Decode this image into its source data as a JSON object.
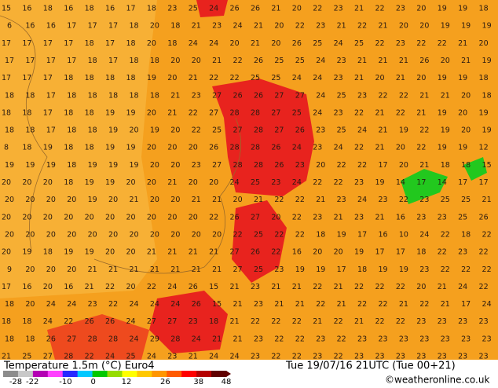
{
  "map": {
    "rows": [
      [
        15,
        16,
        18,
        16,
        18,
        16,
        17,
        18,
        23,
        25,
        24,
        26,
        26,
        21,
        20,
        22,
        23,
        21,
        22,
        23,
        20,
        19,
        19,
        18
      ],
      [
        6,
        16,
        16,
        17,
        17,
        17,
        18,
        20,
        18,
        21,
        23,
        24,
        21,
        20,
        22,
        23,
        21,
        22,
        21,
        20,
        20,
        19,
        19,
        19
      ],
      [
        17,
        17,
        17,
        17,
        18,
        17,
        18,
        20,
        18,
        24,
        24,
        20,
        21,
        20,
        26,
        25,
        24,
        25,
        22,
        23,
        22,
        22,
        21,
        20
      ],
      [
        17,
        17,
        17,
        17,
        18,
        17,
        18,
        18,
        20,
        20,
        21,
        22,
        26,
        25,
        25,
        24,
        23,
        21,
        21,
        21,
        26,
        20,
        21,
        19
      ],
      [
        17,
        17,
        17,
        18,
        18,
        18,
        18,
        19,
        20,
        21,
        22,
        22,
        25,
        25,
        24,
        24,
        23,
        21,
        20,
        21,
        20,
        19,
        19,
        18
      ],
      [
        18,
        18,
        17,
        18,
        18,
        18,
        18,
        18,
        21,
        23,
        27,
        26,
        26,
        27,
        27,
        24,
        25,
        23,
        22,
        22,
        21,
        21,
        20,
        18
      ],
      [
        18,
        18,
        17,
        18,
        18,
        19,
        19,
        20,
        21,
        22,
        27,
        28,
        28,
        27,
        25,
        24,
        23,
        22,
        21,
        22,
        21,
        19,
        20,
        19
      ],
      [
        18,
        18,
        17,
        18,
        18,
        19,
        20,
        19,
        20,
        22,
        25,
        27,
        28,
        27,
        26,
        23,
        25,
        24,
        21,
        19,
        22,
        19,
        20,
        19
      ],
      [
        8,
        18,
        19,
        18,
        18,
        19,
        19,
        20,
        20,
        20,
        26,
        28,
        28,
        26,
        24,
        23,
        24,
        22,
        21,
        20,
        22,
        19,
        19,
        12
      ],
      [
        19,
        19,
        19,
        18,
        19,
        19,
        19,
        20,
        20,
        23,
        27,
        28,
        28,
        26,
        23,
        20,
        22,
        22,
        17,
        20,
        21,
        18,
        18,
        15
      ],
      [
        20,
        20,
        20,
        18,
        19,
        19,
        20,
        20,
        21,
        20,
        20,
        24,
        25,
        23,
        24,
        22,
        22,
        23,
        19,
        14,
        17,
        14,
        17,
        17
      ],
      [
        20,
        20,
        20,
        20,
        19,
        20,
        21,
        20,
        20,
        21,
        21,
        20,
        21,
        22,
        22,
        21,
        23,
        24,
        23,
        22,
        23,
        25,
        25,
        21
      ],
      [
        20,
        20,
        20,
        20,
        20,
        20,
        20,
        20,
        20,
        20,
        22,
        26,
        27,
        20,
        22,
        23,
        21,
        23,
        21,
        16,
        23,
        23,
        25,
        26
      ],
      [
        20,
        20,
        20,
        20,
        20,
        20,
        20,
        20,
        20,
        20,
        20,
        22,
        25,
        22,
        22,
        18,
        19,
        17,
        16,
        10,
        24,
        22,
        18,
        22
      ],
      [
        20,
        19,
        18,
        19,
        19,
        20,
        20,
        21,
        21,
        21,
        21,
        27,
        26,
        22,
        16,
        20,
        20,
        19,
        17,
        17,
        18,
        22,
        23,
        22
      ],
      [
        9,
        20,
        20,
        20,
        21,
        21,
        21,
        21,
        21,
        21,
        21,
        27,
        25,
        23,
        19,
        19,
        17,
        18,
        19,
        19,
        23,
        22,
        22,
        22
      ],
      [
        17,
        16,
        20,
        16,
        21,
        22,
        20,
        22,
        24,
        26,
        15,
        21,
        23,
        21,
        21,
        22,
        21,
        22,
        22,
        22,
        20,
        21,
        24,
        22
      ],
      [
        18,
        20,
        24,
        24,
        23,
        22,
        24,
        24,
        24,
        26,
        15,
        21,
        23,
        21,
        21,
        22,
        21,
        22,
        22,
        21,
        22,
        21,
        17,
        24
      ],
      [
        18,
        18,
        24,
        22,
        26,
        26,
        24,
        27,
        27,
        23,
        18,
        21,
        22,
        22,
        22,
        21,
        22,
        21,
        22,
        22,
        23,
        23,
        23,
        23
      ],
      [
        18,
        18,
        26,
        27,
        28,
        28,
        24,
        29,
        28,
        24,
        21,
        21,
        23,
        22,
        22,
        23,
        22,
        23,
        23,
        23,
        23,
        23,
        23,
        23
      ],
      [
        21,
        25,
        27,
        28,
        22,
        24,
        25,
        24,
        23,
        21,
        24,
        24,
        23,
        22,
        22,
        23,
        22,
        23,
        23,
        23,
        23,
        23,
        23,
        23
      ]
    ]
  },
  "legend": {
    "title": "Temperature 1.5m (°C) Euro4",
    "timestamp": "Tue 19/07/16 21UTC (Tue 00+21)",
    "credit": "©weatheronline.co.uk",
    "ticks": [
      -28,
      -22,
      -10,
      0,
      12,
      26,
      38,
      48
    ],
    "colors": [
      "#8c8c8c",
      "#c8c8c8",
      "#b400b4",
      "#ff40ff",
      "#2828ff",
      "#00c8ff",
      "#00c800",
      "#96dc00",
      "#ffff00",
      "#ffc800",
      "#ff9600",
      "#ff5a00",
      "#ff0000",
      "#b40000",
      "#600000"
    ]
  }
}
